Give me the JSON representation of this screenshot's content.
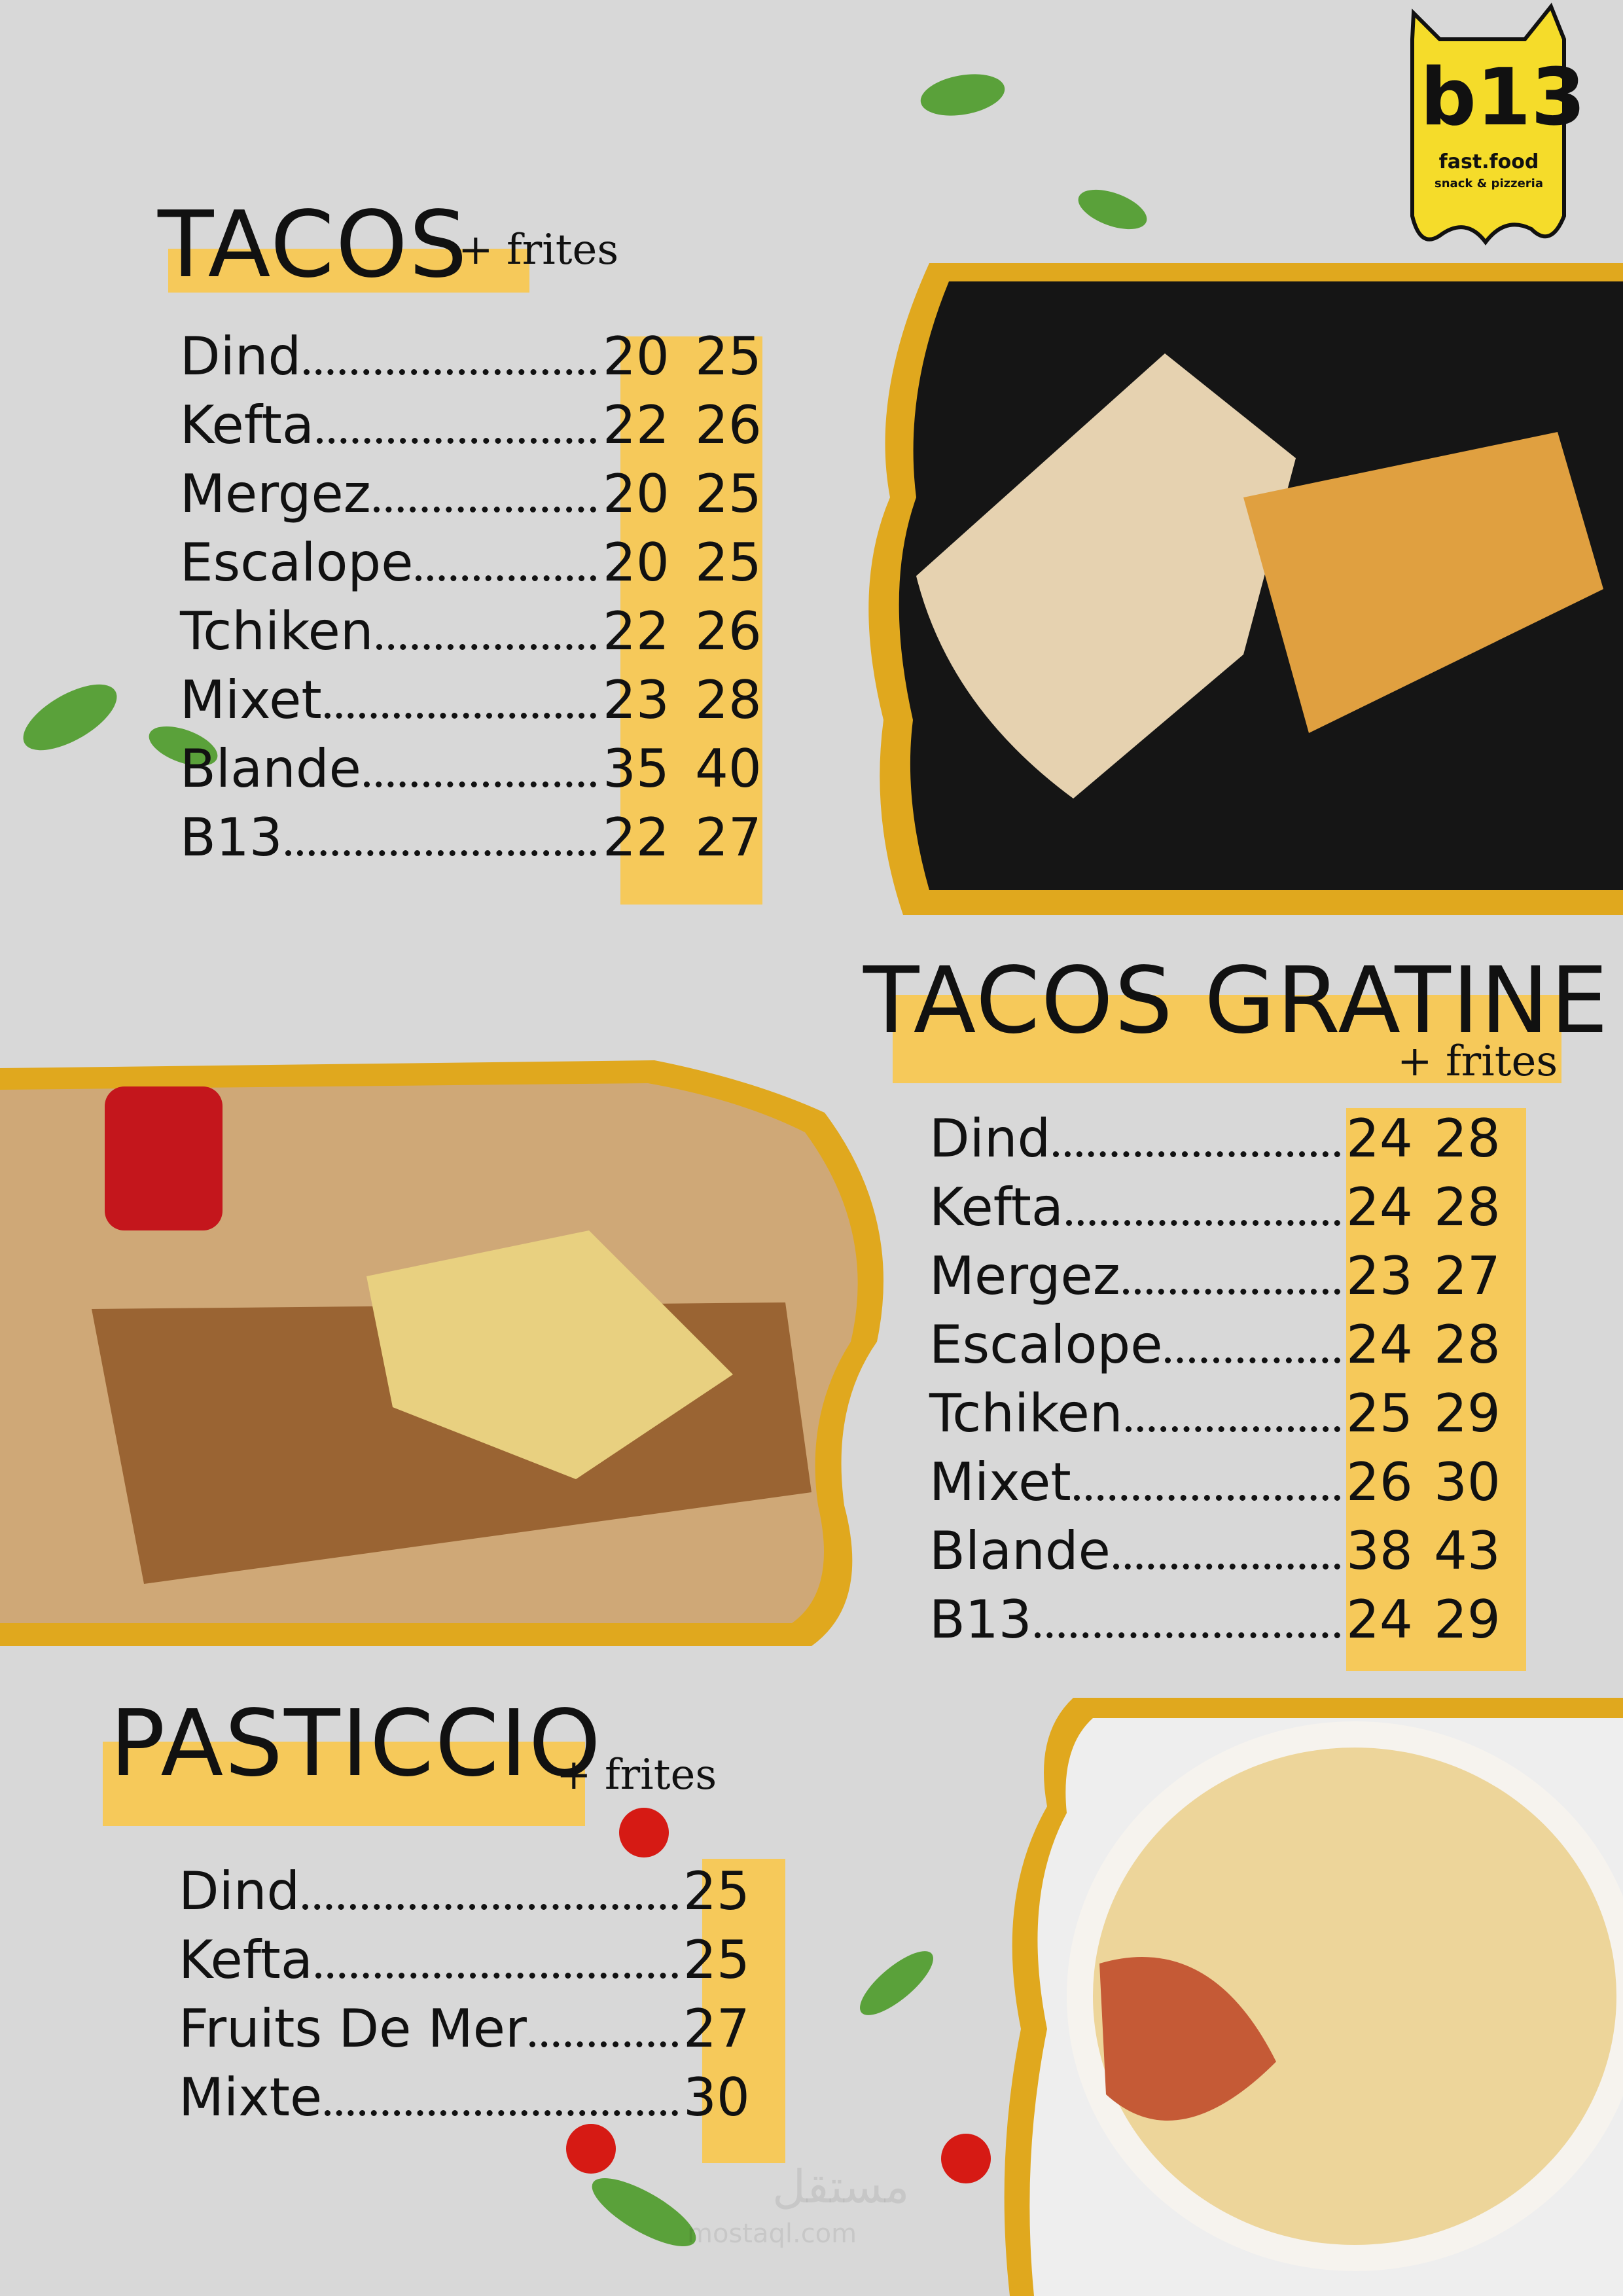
{
  "logo": {
    "brand": "b13",
    "line1": "fast.food",
    "line2": "snack & pizzeria"
  },
  "sections": [
    {
      "title": "TACOS",
      "subtitle": "+ frites",
      "items": [
        {
          "name": "Dind",
          "prices": [
            20,
            25
          ]
        },
        {
          "name": "Kefta",
          "prices": [
            22,
            26
          ]
        },
        {
          "name": "Mergez",
          "prices": [
            20,
            25
          ]
        },
        {
          "name": "Escalope",
          "prices": [
            20,
            25
          ]
        },
        {
          "name": "Tchiken",
          "prices": [
            22,
            26
          ]
        },
        {
          "name": "Mixet",
          "prices": [
            23,
            28
          ]
        },
        {
          "name": "Blande",
          "prices": [
            35,
            40
          ]
        },
        {
          "name": "B13",
          "prices": [
            22,
            27
          ]
        }
      ]
    },
    {
      "title": "TACOS GRATINE",
      "subtitle": "+ frites",
      "items": [
        {
          "name": "Dind",
          "prices": [
            24,
            28
          ]
        },
        {
          "name": "Kefta",
          "prices": [
            24,
            28
          ]
        },
        {
          "name": "Mergez",
          "prices": [
            23,
            27
          ]
        },
        {
          "name": "Escalope",
          "prices": [
            24,
            28
          ]
        },
        {
          "name": "Tchiken",
          "prices": [
            25,
            29
          ]
        },
        {
          "name": "Mixet",
          "prices": [
            26,
            30
          ]
        },
        {
          "name": "Blande",
          "prices": [
            38,
            43
          ]
        },
        {
          "name": "B13",
          "prices": [
            24,
            29
          ]
        }
      ]
    },
    {
      "title": "PASTICCIO",
      "subtitle": "+ frites",
      "items": [
        {
          "name": "Dind",
          "prices": [
            25
          ]
        },
        {
          "name": "Kefta",
          "prices": [
            25
          ]
        },
        {
          "name": "Fruits De Mer",
          "prices": [
            27
          ]
        },
        {
          "name": "Mixte",
          "prices": [
            30
          ]
        }
      ]
    }
  ],
  "watermark": {
    "arabic": "مستقل",
    "latin": "mostaql.com"
  }
}
